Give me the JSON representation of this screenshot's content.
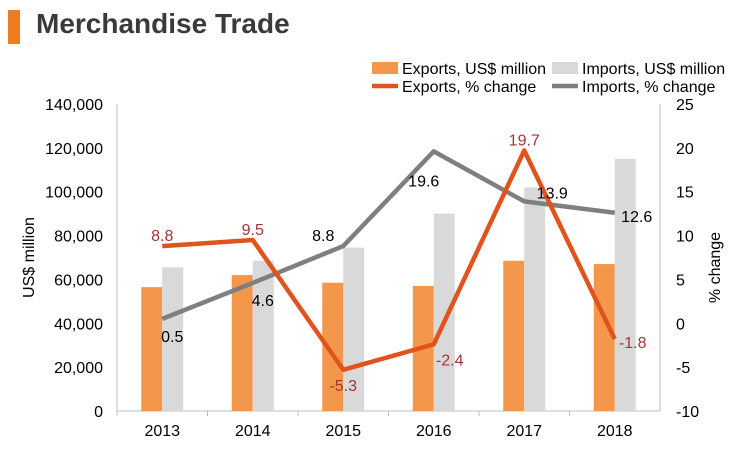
{
  "header": {
    "title": "Merchandise Trade"
  },
  "colors": {
    "exports_bar": "#f5974a",
    "imports_bar": "#d9d9d9",
    "exports_line": "#e0531c",
    "imports_line": "#7f7f7f",
    "accent": "#f07c22",
    "exports_label": "#a4343a",
    "imports_label": "#000000"
  },
  "chart_data": {
    "type": "bar",
    "categories": [
      "2013",
      "2014",
      "2015",
      "2016",
      "2017",
      "2018"
    ],
    "series": [
      {
        "name": "Exports, US$ million",
        "kind": "bar",
        "axis": "left",
        "values": [
          56500,
          62000,
          58500,
          57000,
          68500,
          67000
        ]
      },
      {
        "name": "Imports, US$ million",
        "kind": "bar",
        "axis": "left",
        "values": [
          65500,
          68500,
          74500,
          90000,
          102000,
          115000
        ]
      },
      {
        "name": "Exports, % change",
        "kind": "line",
        "axis": "right",
        "values": [
          8.8,
          9.5,
          -5.3,
          -2.4,
          19.7,
          -1.8
        ],
        "labels": [
          "8.8",
          "9.5",
          "-5.3",
          "-2.4",
          "19.7",
          "-1.8"
        ]
      },
      {
        "name": "Imports, % change",
        "kind": "line",
        "axis": "right",
        "values": [
          0.5,
          4.6,
          8.8,
          19.6,
          13.9,
          12.6
        ],
        "labels": [
          "0.5",
          "4.6",
          "8.8",
          "19.6",
          "13.9",
          "12.6"
        ]
      }
    ],
    "ylabel": "US$ million",
    "y2label": "% change",
    "ylim": [
      0,
      140000
    ],
    "y2lim": [
      -10,
      25
    ],
    "yticks": [
      "0",
      "20,000",
      "40,000",
      "60,000",
      "80,000",
      "100,000",
      "120,000",
      "140,000"
    ],
    "y2ticks": [
      "-10",
      "-5",
      "0",
      "5",
      "10",
      "15",
      "20",
      "25"
    ],
    "legend_position": "top-right",
    "grid": false
  }
}
